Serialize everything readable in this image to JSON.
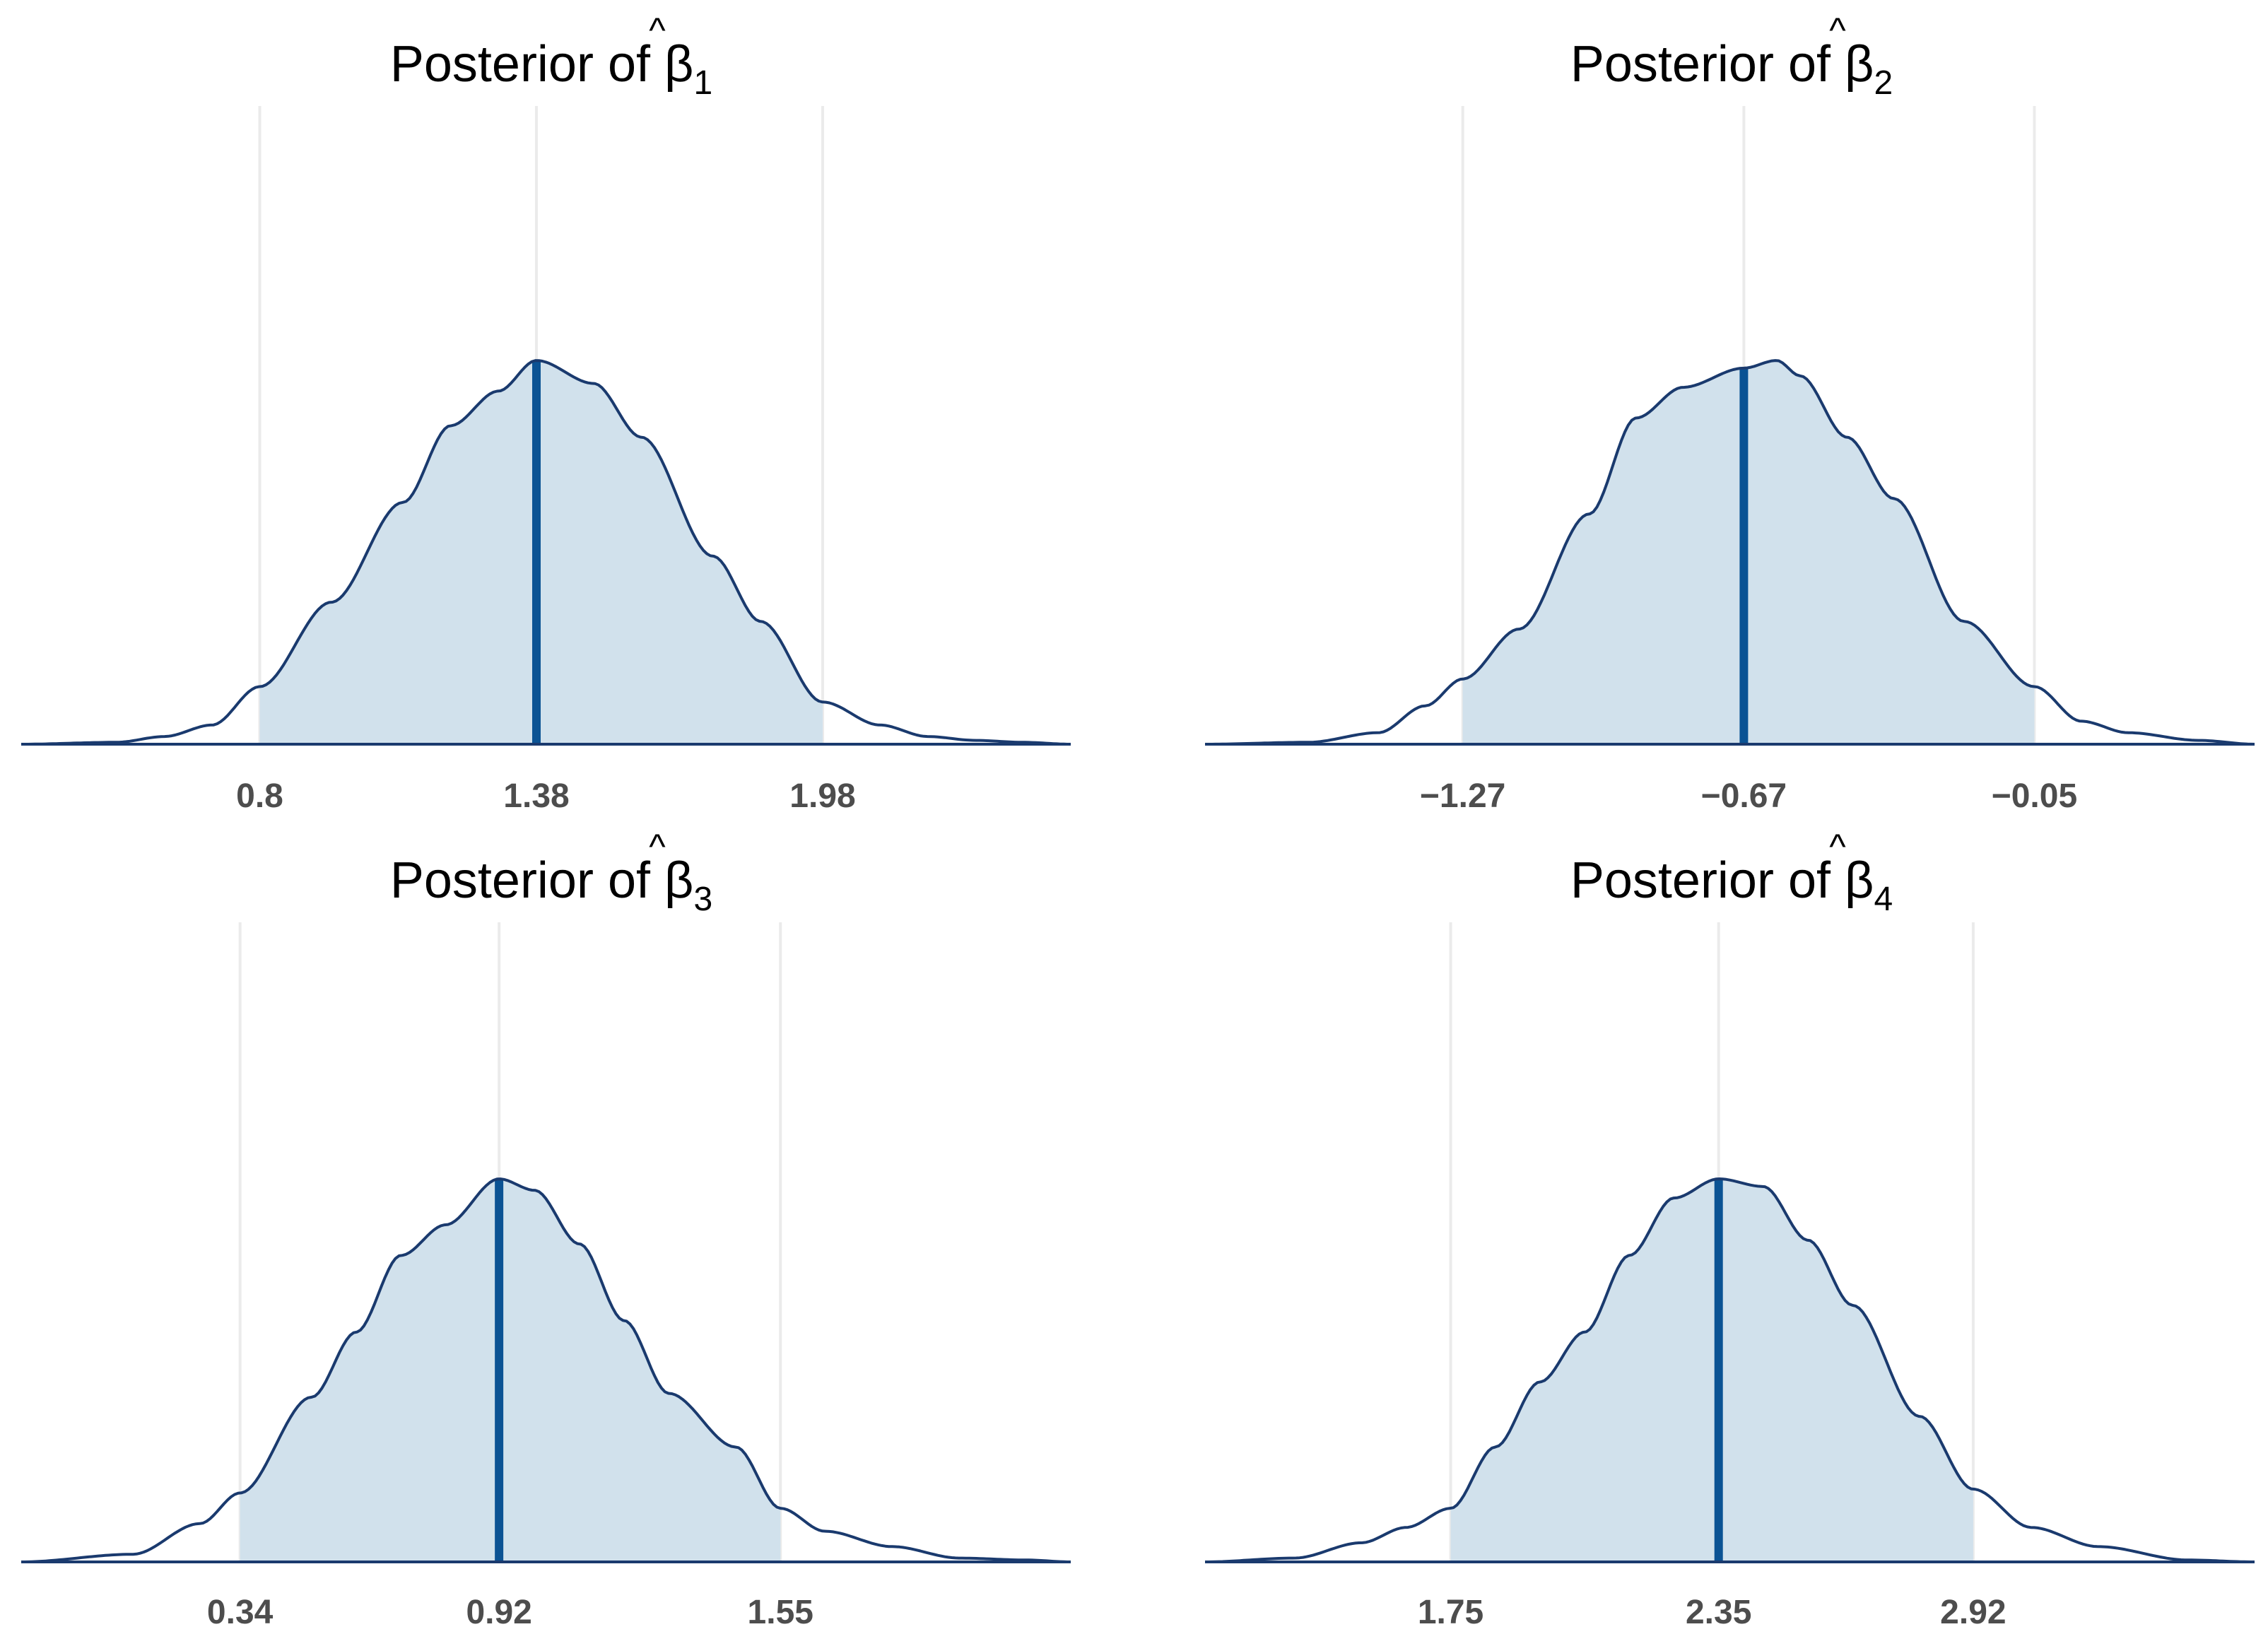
{
  "colors": {
    "density_line": "#1a3a6e",
    "interval_fill": "#d1e1ec",
    "median_line": "#0b5394",
    "gridline": "#ebebeb",
    "tick_text": "#4d4d4d"
  },
  "chart_data": [
    {
      "type": "area",
      "title": "Posterior of ",
      "title_symbol": "β",
      "title_hat": "^",
      "title_subscript": "1",
      "xlabel": "",
      "ylabel": "",
      "xlim": [
        0.3,
        2.5
      ],
      "ylim": [
        0,
        1.0
      ],
      "grid": "vertical at ticks",
      "ticks": [
        0.8,
        1.38,
        1.98
      ],
      "tick_labels": [
        "0.8",
        "1.38",
        "1.98"
      ],
      "interval": [
        0.8,
        1.98
      ],
      "median": 1.38,
      "x": [
        0.3,
        0.5,
        0.6,
        0.7,
        0.8,
        0.95,
        1.1,
        1.2,
        1.3,
        1.38,
        1.5,
        1.6,
        1.75,
        1.85,
        1.98,
        2.1,
        2.2,
        2.3,
        2.4,
        2.5
      ],
      "density": [
        0.0,
        0.005,
        0.02,
        0.05,
        0.15,
        0.37,
        0.63,
        0.83,
        0.92,
        1.0,
        0.94,
        0.8,
        0.49,
        0.32,
        0.11,
        0.05,
        0.02,
        0.01,
        0.005,
        0.0
      ]
    },
    {
      "type": "area",
      "title": "Posterior of ",
      "title_symbol": "β",
      "title_hat": "^",
      "title_subscript": "2",
      "xlabel": "",
      "ylabel": "",
      "xlim": [
        -1.82,
        0.42
      ],
      "ylim": [
        0,
        1.0
      ],
      "grid": "vertical at ticks",
      "ticks": [
        -1.27,
        -0.67,
        -0.05
      ],
      "tick_labels": [
        "−1.27",
        "−0.67",
        "−0.05"
      ],
      "interval": [
        -1.27,
        -0.05
      ],
      "median": -0.67,
      "x": [
        -1.82,
        -1.6,
        -1.45,
        -1.35,
        -1.27,
        -1.15,
        -1.0,
        -0.9,
        -0.8,
        -0.67,
        -0.6,
        -0.55,
        -0.45,
        -0.35,
        -0.2,
        -0.05,
        0.05,
        0.15,
        0.3,
        0.42
      ],
      "density": [
        0.0,
        0.005,
        0.03,
        0.1,
        0.17,
        0.3,
        0.6,
        0.85,
        0.93,
        0.98,
        1.0,
        0.96,
        0.8,
        0.64,
        0.32,
        0.15,
        0.06,
        0.03,
        0.01,
        0.0
      ]
    },
    {
      "type": "area",
      "title": "Posterior of ",
      "title_symbol": "β",
      "title_hat": "^",
      "title_subscript": "3",
      "xlabel": "",
      "ylabel": "",
      "xlim": [
        -0.15,
        2.2
      ],
      "ylim": [
        0,
        1.0
      ],
      "grid": "vertical at ticks",
      "ticks": [
        0.34,
        0.92,
        1.55
      ],
      "tick_labels": [
        "0.34",
        "0.92",
        "1.55"
      ],
      "interval": [
        0.34,
        1.55
      ],
      "median": 0.92,
      "x": [
        -0.15,
        0.1,
        0.25,
        0.34,
        0.5,
        0.6,
        0.7,
        0.8,
        0.92,
        1.0,
        1.1,
        1.2,
        1.3,
        1.45,
        1.55,
        1.65,
        1.8,
        1.95,
        2.1,
        2.2
      ],
      "density": [
        0.0,
        0.02,
        0.1,
        0.18,
        0.43,
        0.6,
        0.8,
        0.88,
        1.0,
        0.97,
        0.83,
        0.63,
        0.44,
        0.3,
        0.14,
        0.08,
        0.04,
        0.01,
        0.005,
        0.0
      ]
    },
    {
      "type": "area",
      "title": "Posterior of ",
      "title_symbol": "β",
      "title_hat": "^",
      "title_subscript": "4",
      "xlabel": "",
      "ylabel": "",
      "xlim": [
        1.2,
        3.55
      ],
      "ylim": [
        0,
        1.0
      ],
      "grid": "vertical at ticks",
      "ticks": [
        1.75,
        2.35,
        2.92
      ],
      "tick_labels": [
        "1.75",
        "2.35",
        "2.92"
      ],
      "interval": [
        1.75,
        2.92
      ],
      "median": 2.35,
      "x": [
        1.2,
        1.4,
        1.55,
        1.65,
        1.75,
        1.85,
        1.95,
        2.05,
        2.15,
        2.25,
        2.35,
        2.45,
        2.55,
        2.65,
        2.8,
        2.92,
        3.05,
        3.2,
        3.4,
        3.55
      ],
      "density": [
        0.0,
        0.01,
        0.05,
        0.09,
        0.14,
        0.3,
        0.47,
        0.6,
        0.8,
        0.95,
        1.0,
        0.98,
        0.84,
        0.67,
        0.38,
        0.19,
        0.09,
        0.04,
        0.005,
        0.0
      ]
    }
  ]
}
